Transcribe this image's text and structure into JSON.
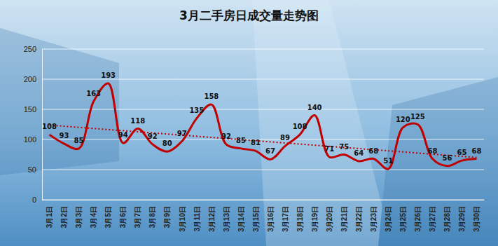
{
  "chart_data": {
    "type": "line",
    "title": "3月二手房日成交量走势图",
    "categories": [
      "3月1日",
      "3月2日",
      "3月3日",
      "3月4日",
      "3月5日",
      "3月6日",
      "3月7日",
      "3月8日",
      "3月9日",
      "3月10日",
      "3月11日",
      "3月12日",
      "3月13日",
      "3月14日",
      "3月15日",
      "3月16日",
      "3月17日",
      "3月18日",
      "3月19日",
      "3月20日",
      "3月21日",
      "3月22日",
      "3月23日",
      "3月24日",
      "3月25日",
      "3月26日",
      "3月27日",
      "3月28日",
      "3月29日",
      "3月30日"
    ],
    "values": [
      108,
      93,
      85,
      163,
      193,
      94,
      118,
      92,
      80,
      97,
      135,
      158,
      92,
      85,
      81,
      67,
      89,
      108,
      140,
      71,
      75,
      64,
      68,
      51,
      120,
      125,
      68,
      56,
      65,
      68
    ],
    "color": "#c00000",
    "ylim": [
      0,
      250
    ],
    "yticks": [
      0,
      50,
      100,
      150,
      200,
      250
    ],
    "grid": true,
    "data_labels": true
  }
}
